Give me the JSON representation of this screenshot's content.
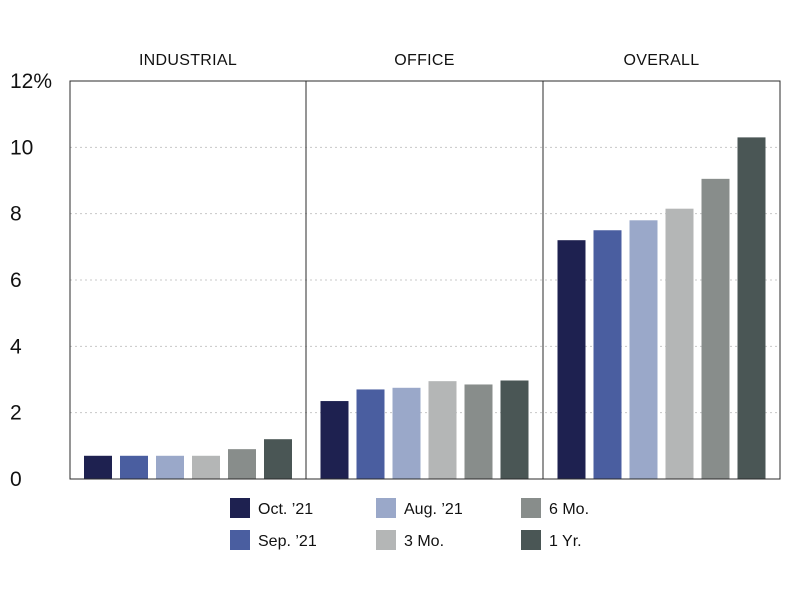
{
  "chart_data": {
    "type": "bar",
    "panels": [
      {
        "title": "INDUSTRIAL",
        "series_values": {
          "Oct. ’21": 0.7,
          "Sep. ’21": 0.7,
          "Aug. ’21": 0.7,
          "3 Mo.": 0.7,
          "6 Mo.": 0.9,
          "1 Yr.": 1.2
        }
      },
      {
        "title": "OFFICE",
        "series_values": {
          "Oct. ’21": 2.35,
          "Sep. ’21": 2.7,
          "Aug. ’21": 2.75,
          "3 Mo.": 2.95,
          "6 Mo.": 2.85,
          "1 Yr.": 2.97
        }
      },
      {
        "title": "OVERALL",
        "series_values": {
          "Oct. ’21": 7.2,
          "Sep. ’21": 7.5,
          "Aug. ’21": 7.8,
          "3 Mo.": 8.15,
          "6 Mo.": 9.05,
          "1 Yr.": 10.3
        }
      }
    ],
    "series": [
      {
        "name": "Oct. ’21",
        "color": "#1e2150"
      },
      {
        "name": "Sep. ’21",
        "color": "#4a5ea0"
      },
      {
        "name": "Aug. ’21",
        "color": "#9aa8c9"
      },
      {
        "name": "3 Mo.",
        "color": "#b4b6b6"
      },
      {
        "name": "6 Mo.",
        "color": "#888d8b"
      },
      {
        "name": "1 Yr.",
        "color": "#4a5655"
      }
    ],
    "legend_order": [
      "Oct. ’21",
      "Aug. ’21",
      "6 Mo.",
      "Sep. ’21",
      "3 Mo.",
      "1 Yr."
    ],
    "y_ticks": [
      "0",
      "2",
      "4",
      "6",
      "8",
      "10",
      "12%"
    ],
    "y_tick_values": [
      0,
      2,
      4,
      6,
      8,
      10,
      12
    ],
    "ylim": [
      0,
      12
    ],
    "grid": true,
    "legend_position": "bottom"
  }
}
